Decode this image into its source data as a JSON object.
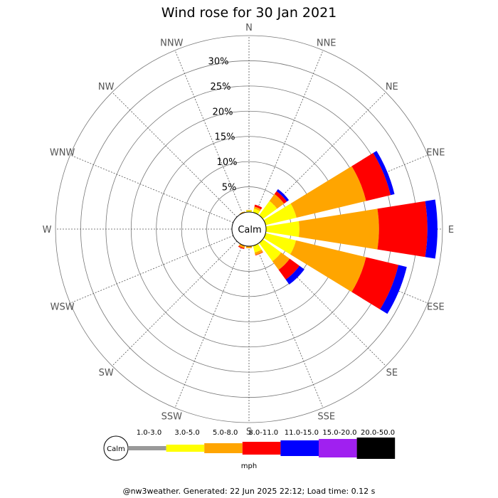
{
  "chart_data": {
    "type": "wind-rose",
    "title": "Wind rose for 30 Jan 2021",
    "directions": [
      "N",
      "NNE",
      "NE",
      "ENE",
      "E",
      "ESE",
      "SE",
      "SSE",
      "S",
      "SSW",
      "SW",
      "WSW",
      "W",
      "WNW",
      "NW",
      "NNW"
    ],
    "radial_ticks": [
      "5%",
      "10%",
      "15%",
      "20%",
      "25%",
      "30%"
    ],
    "radial_max_percent": 35,
    "calm_label": "Calm",
    "speed_unit": "mph",
    "speed_bins": [
      {
        "label": "1.0-3.0",
        "color": "#999999"
      },
      {
        "label": "3.0-5.0",
        "color": "#ffff00"
      },
      {
        "label": "5.0-8.0",
        "color": "#ffa500"
      },
      {
        "label": "8.0-11.0",
        "color": "#ff0000"
      },
      {
        "label": "11.0-15.0",
        "color": "#0000ff"
      },
      {
        "label": "15.0-20.0",
        "color": "#a020f0"
      },
      {
        "label": "20.0-50.0",
        "color": "#000000"
      }
    ],
    "series": [
      {
        "direction": "N",
        "cumulative_percent": [
          0,
          0.3,
          0.4
        ]
      },
      {
        "direction": "NNE",
        "cumulative_percent": [
          0,
          0.8,
          1.2,
          1.6
        ]
      },
      {
        "direction": "NE",
        "cumulative_percent": [
          0,
          3.5,
          5.2,
          5.9,
          6.4
        ]
      },
      {
        "direction": "ENE",
        "cumulative_percent": [
          0,
          6.3,
          20.5,
          25.5,
          26.3
        ]
      },
      {
        "direction": "E",
        "cumulative_percent": [
          0,
          6.6,
          22.4,
          32.0,
          34.0
        ]
      },
      {
        "direction": "ESE",
        "cumulative_percent": [
          0,
          6.2,
          20.5,
          27.1,
          28.8
        ]
      },
      {
        "direction": "SE",
        "cumulative_percent": [
          0,
          4.5,
          6.6,
          9.0,
          10.2
        ]
      },
      {
        "direction": "SSE",
        "cumulative_percent": [
          0,
          1.4,
          1.9,
          2.0
        ]
      },
      {
        "direction": "S",
        "cumulative_percent": [
          0,
          0,
          0.4
        ]
      },
      {
        "direction": "SSW",
        "cumulative_percent": [
          0,
          0,
          0.5,
          0.7
        ]
      },
      {
        "direction": "NNW",
        "cumulative_percent": [
          0,
          0,
          0.2
        ]
      }
    ]
  },
  "footer": "@nw3weather. Generated: 22 Jun 2025 22:12; Load time: 0.12 s"
}
